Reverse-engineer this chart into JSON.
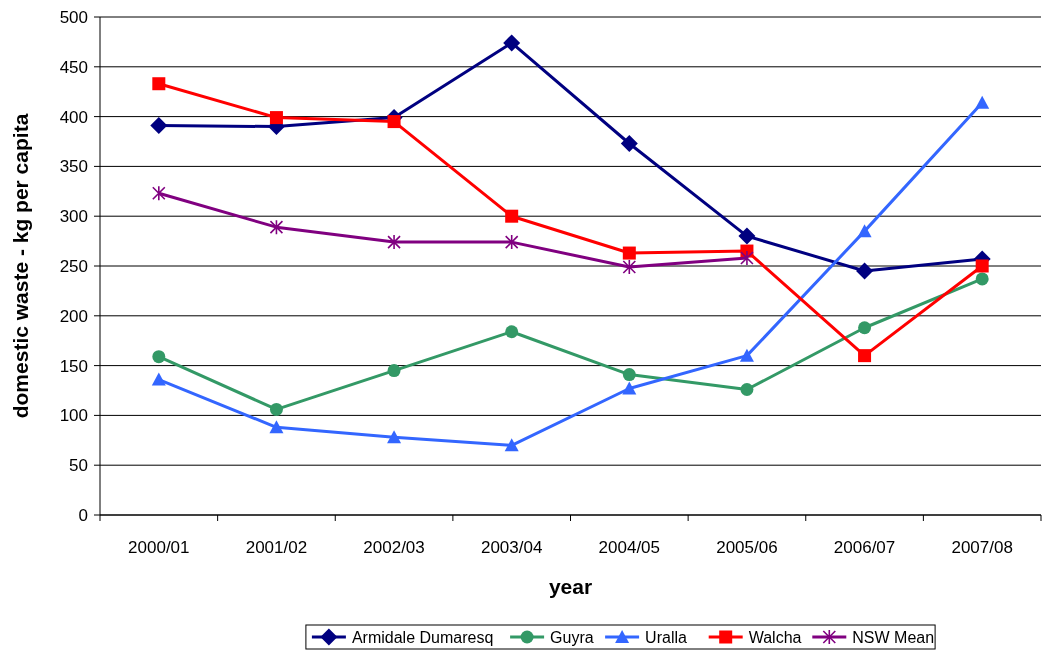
{
  "chart_data": {
    "type": "line",
    "xlabel": "year",
    "ylabel": "domestic waste - kg per capita",
    "categories": [
      "2000/01",
      "2001/02",
      "2002/03",
      "2003/04",
      "2004/05",
      "2005/06",
      "2006/07",
      "2007/08"
    ],
    "series": [
      {
        "name": "Armidale Dumaresq",
        "color": "#000080",
        "marker": "diamond",
        "values": [
          391,
          390,
          399,
          474,
          373,
          280,
          245,
          257
        ]
      },
      {
        "name": "Guyra",
        "color": "#339966",
        "marker": "circle",
        "values": [
          159,
          106,
          145,
          184,
          141,
          126,
          188,
          237
        ]
      },
      {
        "name": "Uralla",
        "color": "#3366ff",
        "marker": "triangle",
        "values": [
          136,
          88,
          78,
          70,
          127,
          160,
          285,
          414
        ]
      },
      {
        "name": "Walcha",
        "color": "#ff0000",
        "marker": "square",
        "values": [
          433,
          399,
          395,
          300,
          263,
          265,
          160,
          250
        ]
      },
      {
        "name": "NSW Mean",
        "color": "#800080",
        "marker": "cross",
        "values": [
          323,
          289,
          274,
          274,
          249,
          258,
          null,
          null
        ]
      }
    ],
    "ylim": [
      0,
      500
    ],
    "yticks": [
      0,
      50,
      100,
      150,
      200,
      250,
      300,
      350,
      400,
      450,
      500
    ],
    "grid": "y",
    "legend": "bottom",
    "line_style": "solid"
  }
}
